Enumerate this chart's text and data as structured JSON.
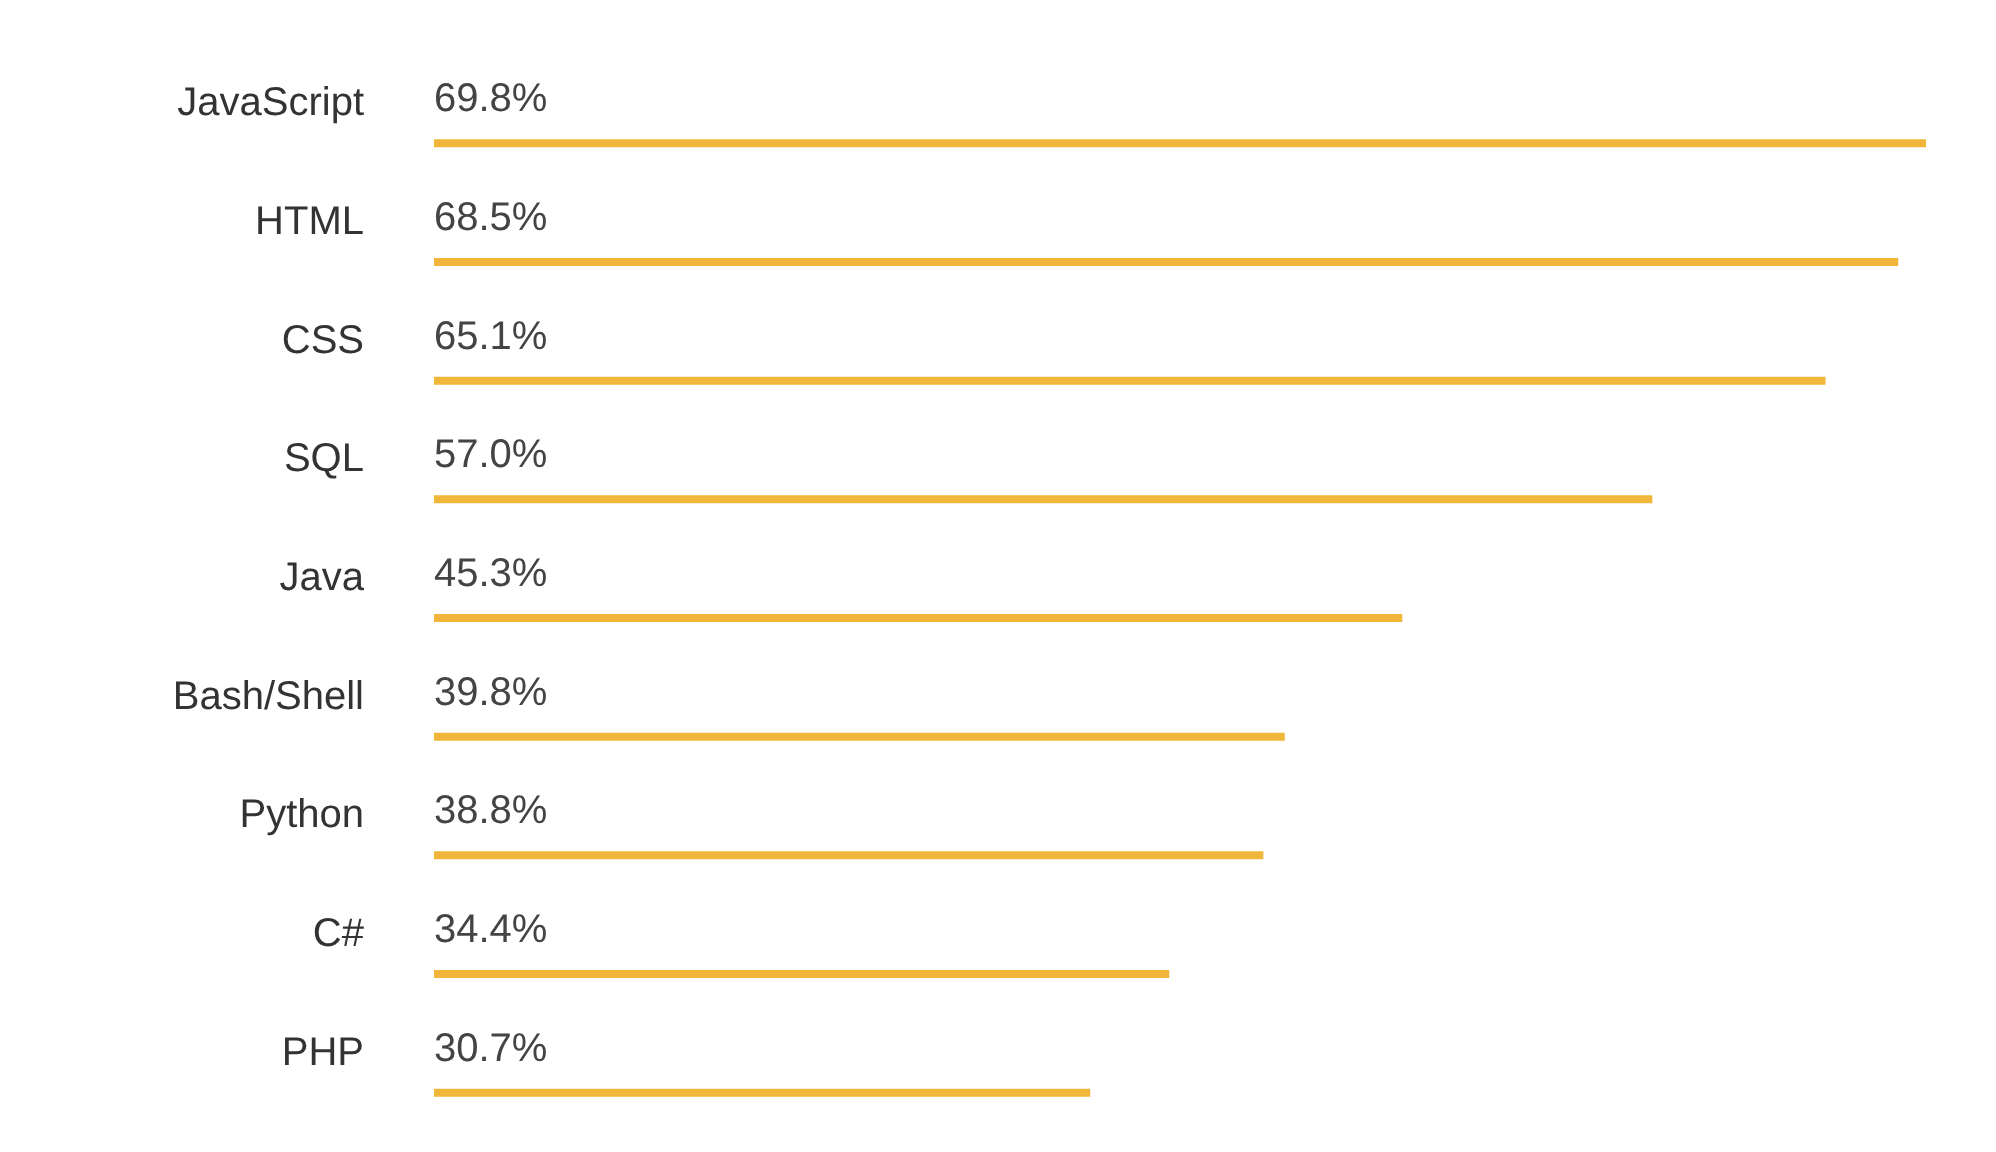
{
  "chart_data": {
    "type": "bar",
    "orientation": "horizontal",
    "categories": [
      "JavaScript",
      "HTML",
      "CSS",
      "SQL",
      "Java",
      "Bash/Shell",
      "Python",
      "C#",
      "PHP"
    ],
    "values": [
      69.8,
      68.5,
      65.1,
      57.0,
      45.3,
      39.8,
      38.8,
      34.4,
      30.7
    ],
    "value_labels": [
      "69.8%",
      "68.5%",
      "65.1%",
      "57.0%",
      "45.3%",
      "39.8%",
      "38.8%",
      "34.4%",
      "30.7%"
    ],
    "color": "#f0b73a",
    "grid": false
  }
}
